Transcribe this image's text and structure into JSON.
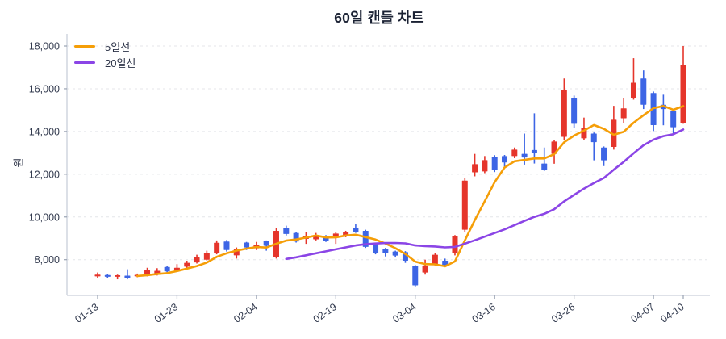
{
  "page": {
    "background": "#ffffff"
  },
  "chart_data": {
    "type": "candlestick",
    "title": "60일 캔들 차트",
    "ylabel": "원",
    "grid": "horizontal-dashed",
    "legend_position": "top-left",
    "y_ticks": [
      8000,
      10000,
      12000,
      14000,
      16000,
      18000
    ],
    "ylim": [
      6330,
      18450
    ],
    "x_tick_labels": [
      "01-13",
      "01-23",
      "02-04",
      "02-19",
      "03-04",
      "03-16",
      "03-26",
      "04-07",
      "04-10"
    ],
    "x_tick_indices": [
      0,
      8,
      16,
      24,
      32,
      40,
      48,
      56,
      59
    ],
    "up_color": "#E5352B",
    "down_color": "#3D65E5",
    "overlays": [
      {
        "name": "5일선",
        "window": 5,
        "color": "#F59E07"
      },
      {
        "name": "20일선",
        "window": 20,
        "color": "#8B45E6"
      }
    ],
    "candles": {
      "open": [
        7220,
        7280,
        7200,
        7250,
        7220,
        7250,
        7300,
        7660,
        7480,
        7670,
        7870,
        8000,
        8320,
        8850,
        8200,
        8800,
        8530,
        8870,
        8100,
        9500,
        9250,
        8970,
        8950,
        9080,
        9100,
        9100,
        9470,
        9350,
        8750,
        8490,
        8380,
        8350,
        7700,
        7400,
        7780,
        7950,
        8300,
        9400,
        12090,
        12130,
        12800,
        12850,
        12850,
        12950,
        13130,
        12500,
        12950,
        13750,
        15550,
        13680,
        13900,
        13250,
        13280,
        14620,
        15570,
        16480,
        15800,
        15250,
        14950,
        14400
      ],
      "high": [
        7400,
        7330,
        7300,
        7550,
        7350,
        7620,
        7600,
        7700,
        7790,
        7950,
        8230,
        8420,
        8900,
        8920,
        8570,
        8830,
        8830,
        8900,
        9500,
        9590,
        9300,
        9280,
        9250,
        9150,
        9280,
        9350,
        9650,
        9400,
        8800,
        8550,
        8420,
        8400,
        7750,
        8000,
        8300,
        8050,
        9150,
        11830,
        12950,
        12850,
        12890,
        12900,
        13250,
        13900,
        14850,
        13250,
        13600,
        16480,
        15680,
        14650,
        13950,
        13300,
        15200,
        15560,
        17430,
        16860,
        15870,
        15720,
        15000,
        18000
      ],
      "low": [
        7130,
        7150,
        7080,
        7080,
        7180,
        7220,
        7260,
        7400,
        7430,
        7620,
        7820,
        7960,
        8250,
        8380,
        8050,
        8450,
        8450,
        8420,
        8050,
        9130,
        8800,
        8740,
        8900,
        8830,
        8740,
        9050,
        9250,
        8550,
        8250,
        8150,
        8100,
        7850,
        6750,
        7300,
        7730,
        7680,
        8200,
        9300,
        11900,
        12050,
        12100,
        12300,
        12750,
        12450,
        12500,
        12150,
        12490,
        13600,
        14170,
        13600,
        12650,
        12380,
        13150,
        14400,
        15490,
        15050,
        14020,
        14290,
        13910,
        14360
      ],
      "close": [
        7300,
        7200,
        7270,
        7120,
        7290,
        7500,
        7480,
        7450,
        7620,
        7850,
        8100,
        8300,
        8790,
        8450,
        8480,
        8570,
        8680,
        8650,
        9350,
        9200,
        8850,
        9100,
        9150,
        8890,
        9220,
        9290,
        9290,
        8600,
        8300,
        8300,
        8190,
        7950,
        6800,
        7730,
        8230,
        7750,
        9100,
        11700,
        12470,
        12660,
        12200,
        12550,
        13150,
        12780,
        13000,
        12200,
        13530,
        15950,
        14360,
        14160,
        13500,
        12650,
        14550,
        15080,
        16280,
        15250,
        14300,
        15050,
        14200,
        17130
      ]
    }
  }
}
